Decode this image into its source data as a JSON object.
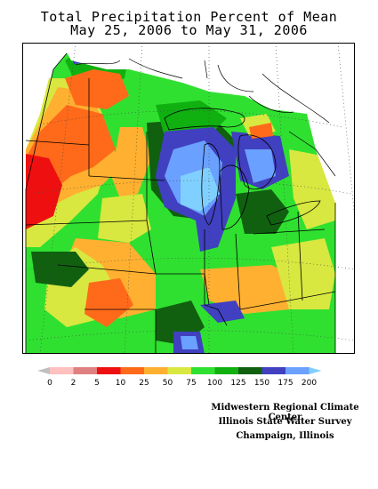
{
  "title": {
    "line1": "Total Precipitation Percent of Mean",
    "line2": "May 25, 2006 to May 31, 2006"
  },
  "legend": {
    "tick_labels": [
      "0",
      "2",
      "5",
      "10",
      "25",
      "50",
      "75",
      "100",
      "125",
      "150",
      "175",
      "200"
    ],
    "colors": [
      "#bfbfbf",
      "#ffc0c0",
      "#e08080",
      "#ee1010",
      "#ff6a1a",
      "#ffb030",
      "#d8e840",
      "#30e030",
      "#10b010",
      "#106010",
      "#4040c0",
      "#6aa0ff",
      "#80d0ff"
    ]
  },
  "credits": {
    "line1": "Midwestern Regional Climate Center",
    "line2": "Illinois State Water Survey",
    "line3": "Champaign, Illinois"
  },
  "map": {
    "palette": {
      "orange": "#ff6a1a",
      "light_orange": "#ffb030",
      "yellow": "#d8e840",
      "green": "#30e030",
      "mid_green": "#10b010",
      "dark_green": "#106010",
      "dark_blue": "#4040c0",
      "light_blue": "#6aa0ff",
      "sky_blue": "#80d0ff",
      "red": "#ee1010",
      "lake_land_none": "#ffffff"
    }
  }
}
